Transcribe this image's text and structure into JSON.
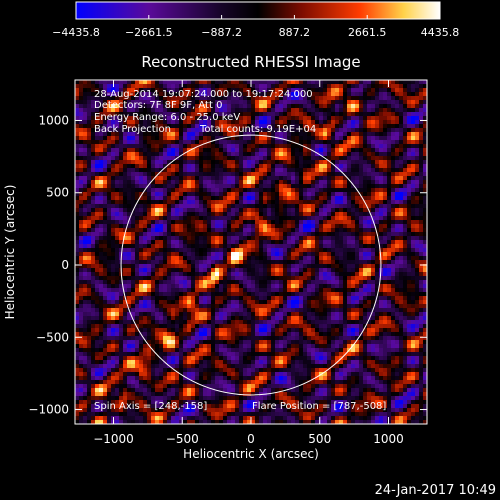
{
  "chart_data": {
    "type": "heatmap",
    "title": "Reconstructed RHESSI Image",
    "xlabel": "Heliocentric X (arcsec)",
    "ylabel": "Heliocentric Y (arcsec)",
    "xlim": [
      -1280,
      1280
    ],
    "ylim": [
      -1100,
      1280
    ],
    "xticks": [
      -1000,
      -500,
      0,
      500,
      1000
    ],
    "xtick_labels": [
      "−1000",
      "−500",
      "0",
      "500",
      "1000"
    ],
    "yticks": [
      -1000,
      -500,
      0,
      500,
      1000
    ],
    "ytick_labels": [
      "−1000",
      "−500",
      "0",
      "500",
      "1000"
    ],
    "colorbar": {
      "min": -4435.8,
      "max": 4435.8,
      "tick_values": [
        -4435.8,
        -2661.5,
        -887.2,
        887.2,
        2661.5,
        4435.8
      ],
      "tick_labels": [
        "−4435.8",
        "−2661.5",
        "−887.2",
        "887.2",
        "2661.5",
        "4435.8"
      ],
      "colors": [
        "#0000ff",
        "#5a0a9a",
        "#160428",
        "#000000",
        "#7d0c00",
        "#ff3c00",
        "#ffd24a",
        "#ffffff"
      ]
    },
    "solar_limb": {
      "center": [
        0,
        0
      ],
      "radius": 945
    },
    "annotations": [
      "28-Aug-2014 19:07:24.000 to 19:17:24.000",
      "Detectors: 7F 8F 9F, Att 0",
      "Energy Range: 6.0 - 25.0 keV",
      "Back Projection",
      "Total counts: 9.19E+04",
      "Spin Axis = [248,-158]",
      "Flare Position = [787,-508]"
    ],
    "timestamp": "24-Jan-2017 10:49"
  }
}
